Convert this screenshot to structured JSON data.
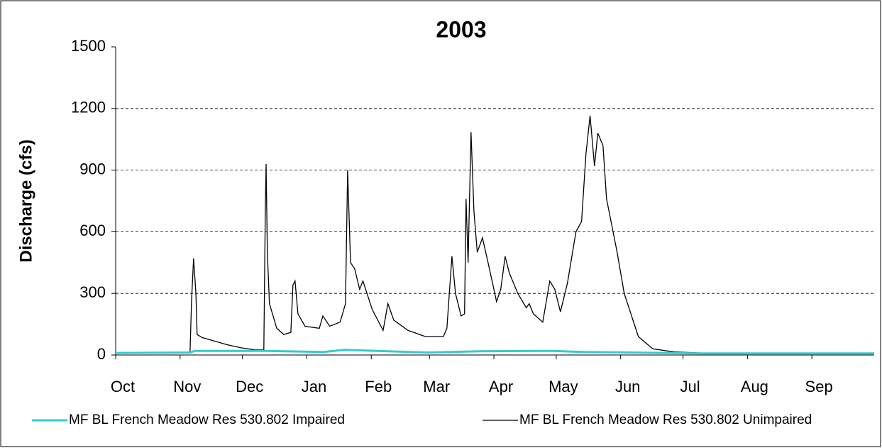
{
  "chart_data": {
    "type": "line",
    "title": "2003",
    "y_label": "Discharge (cfs)",
    "xlim": [
      0,
      365
    ],
    "xticks": [
      {
        "value": 0,
        "label": "Oct"
      },
      {
        "value": 31,
        "label": "Nov"
      },
      {
        "value": 61,
        "label": "Dec"
      },
      {
        "value": 92,
        "label": "Jan"
      },
      {
        "value": 123,
        "label": "Feb"
      },
      {
        "value": 151,
        "label": "Mar"
      },
      {
        "value": 182,
        "label": "Apr"
      },
      {
        "value": 212,
        "label": "May"
      },
      {
        "value": 243,
        "label": "Jun"
      },
      {
        "value": 273,
        "label": "Jul"
      },
      {
        "value": 304,
        "label": "Aug"
      },
      {
        "value": 335,
        "label": "Sep"
      }
    ],
    "ylim": [
      0,
      1500
    ],
    "yticks": [
      0,
      300,
      600,
      900,
      1200,
      1500
    ],
    "grid": true,
    "legend": "bottom",
    "series": [
      {
        "name": "MF BL French Meadow Res 530.802 Impaired",
        "color": "#33cccc",
        "x": [
          0,
          36,
          38,
          72,
          100,
          110,
          150,
          175,
          210,
          225,
          280,
          365
        ],
        "values": [
          10,
          12,
          20,
          20,
          15,
          25,
          12,
          18,
          20,
          15,
          8,
          8
        ]
      },
      {
        "name": "MF BL French Meadow Res 530.802 Unimpaired",
        "color": "#000000",
        "x": [
          0,
          35.8,
          36.5,
          37.5,
          38.6,
          39.2,
          41.6,
          46.8,
          53.6,
          60.4,
          67.2,
          71.3,
          72,
          72.4,
          73,
          74,
          77.5,
          80.9,
          84.3,
          85.3,
          86.3,
          87.7,
          91.1,
          98,
          99.7,
          103,
          108,
          110.6,
          111.6,
          113,
          115,
          117.4,
          119,
          123.5,
          128.7,
          131,
          133.8,
          140.6,
          149,
          157.7,
          159.4,
          161.8,
          163.5,
          166.2,
          167.9,
          168.6,
          169.6,
          171,
          172.4,
          174,
          176.5,
          179.2,
          183.3,
          185.3,
          187.4,
          189.4,
          193.5,
          197.6,
          199,
          201,
          205.5,
          208.9,
          211.3,
          214,
          217.4,
          221.5,
          224.2,
          226.3,
          228.3,
          230.4,
          232,
          234.5,
          236.2,
          241.3,
          244.7,
          251.5,
          258.4,
          268.6,
          285.7,
          364.9
        ],
        "values": [
          10,
          10,
          260,
          470,
          300,
          100,
          85,
          70,
          50,
          35,
          25,
          25,
          700,
          930,
          500,
          250,
          130,
          100,
          110,
          340,
          360,
          200,
          140,
          130,
          190,
          140,
          160,
          250,
          900,
          450,
          420,
          320,
          360,
          220,
          120,
          250,
          170,
          120,
          90,
          90,
          130,
          480,
          300,
          190,
          200,
          760,
          450,
          1085,
          700,
          500,
          570,
          450,
          260,
          320,
          480,
          400,
          300,
          230,
          250,
          200,
          160,
          360,
          320,
          210,
          350,
          600,
          650,
          980,
          1165,
          920,
          1080,
          1020,
          760,
          500,
          300,
          90,
          30,
          15,
          8,
          8
        ]
      }
    ]
  }
}
